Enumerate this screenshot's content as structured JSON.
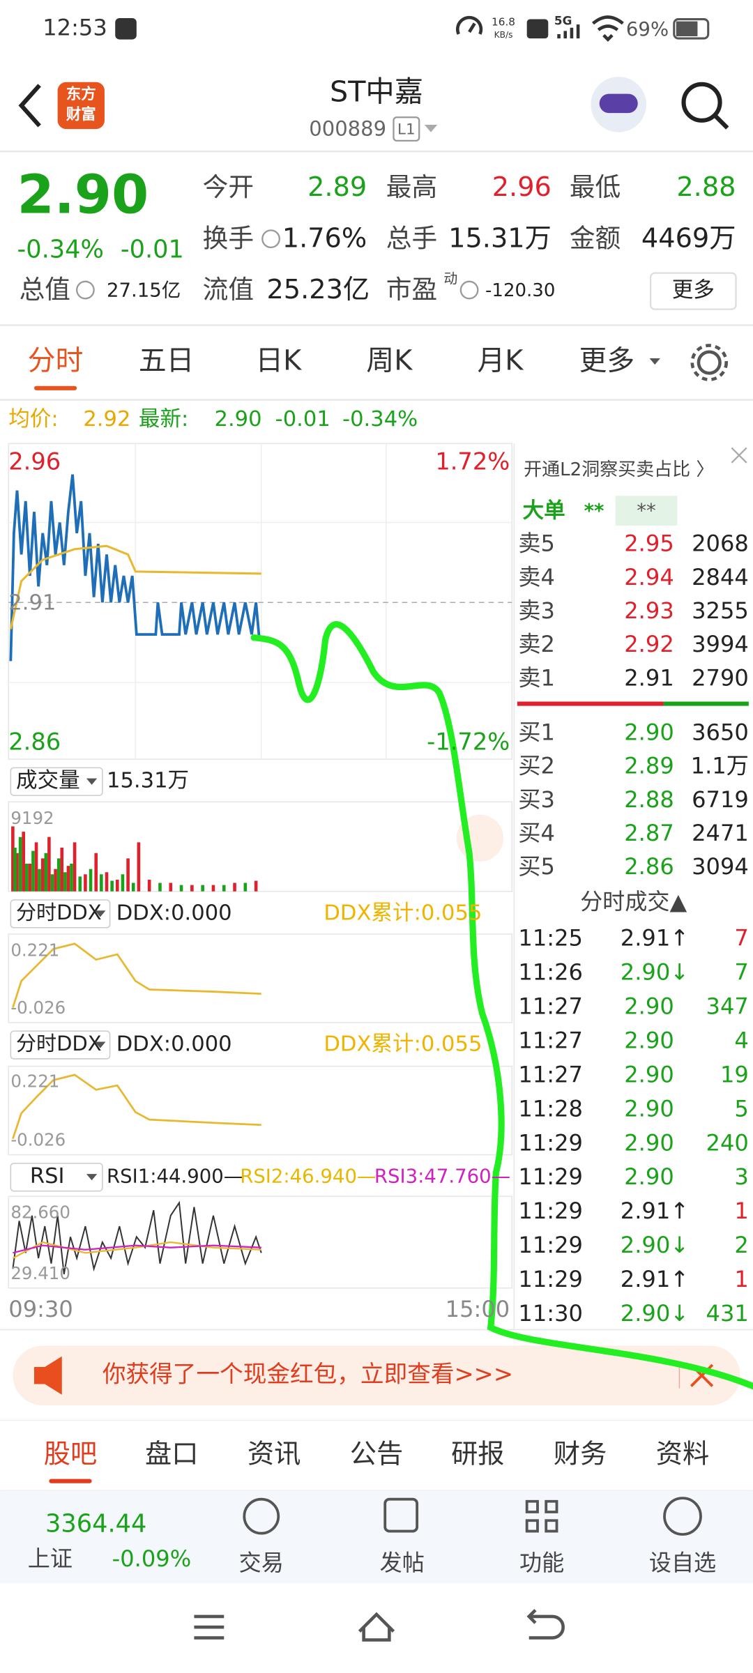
{
  "status_bar": {
    "time": "12:53",
    "speed": [
      "16.8",
      "KB/s"
    ],
    "network": "5G",
    "battery": "69%"
  },
  "header": {
    "logo": [
      "东方",
      "财富"
    ],
    "name": "ST中嘉",
    "code": "000889",
    "level": "L1"
  },
  "quote": {
    "price": "2.90",
    "change_pct": "-0.34%",
    "change": "-0.01",
    "color": "#1aa31a",
    "fields": [
      {
        "label": "今开",
        "value": "2.89",
        "color": "#1aa31a"
      },
      {
        "label": "最高",
        "value": "2.96",
        "color": "#e0202a"
      },
      {
        "label": "最低",
        "value": "2.88",
        "color": "#1aa31a"
      },
      {
        "label": "换手",
        "value": "1.76%",
        "color": "#222222"
      },
      {
        "label": "总手",
        "value": "15.31万",
        "color": "#222222"
      },
      {
        "label": "金额",
        "value": "4469万",
        "color": "#222222"
      },
      {
        "label": "总值",
        "value": "27.15亿",
        "color": "#222222"
      },
      {
        "label": "流值",
        "value": "25.23亿",
        "color": "#222222"
      },
      {
        "label": "市盈",
        "superscript": "动",
        "value": "-120.30",
        "color": "#222222"
      }
    ],
    "more": "更多"
  },
  "tabs": {
    "items": [
      "分时",
      "五日",
      "日K",
      "周K",
      "月K",
      "更多"
    ],
    "active": 0
  },
  "summary": {
    "avg_label": "均价:",
    "avg": "2.92",
    "latest_label": "最新:",
    "latest": "2.90",
    "change": "-0.01",
    "change_pct": "-0.34%"
  },
  "chart": {
    "price_high": "2.96",
    "price_mid": "2.91",
    "price_low": "2.86",
    "pct_high": "1.72%",
    "pct_low": "-1.72%",
    "volume": {
      "name": "成交量",
      "total": "15.31万",
      "max": "9192"
    },
    "ddx_panels": [
      {
        "name": "分时DDX",
        "ddx": "DDX:0.000",
        "cum": "DDX累计:0.055",
        "top": "0.221",
        "bottom": "-0.026"
      },
      {
        "name": "分时DDX",
        "ddx": "DDX:0.000",
        "cum": "DDX累计:0.055",
        "top": "0.221",
        "bottom": "-0.026"
      }
    ],
    "rsi": {
      "name": "RSI",
      "rsi1": "RSI1:44.900—",
      "rsi2": "RSI2:46.940—",
      "rsi3": "RSI3:47.760—",
      "top": "82.660",
      "bottom": "29.410"
    },
    "time_start": "09:30",
    "time_end": "15:00"
  },
  "order_book": {
    "banner": "开通L2洞察买卖占比 〉",
    "big_order": "大单",
    "stars": [
      "**",
      "**"
    ],
    "asks": [
      {
        "label": "卖5",
        "price": "2.95",
        "volume": "2068",
        "color": "#e0202a"
      },
      {
        "label": "卖4",
        "price": "2.94",
        "volume": "2844",
        "color": "#e0202a"
      },
      {
        "label": "卖3",
        "price": "2.93",
        "volume": "3255",
        "color": "#e0202a"
      },
      {
        "label": "卖2",
        "price": "2.92",
        "volume": "3994",
        "color": "#e0202a"
      },
      {
        "label": "卖1",
        "price": "2.91",
        "volume": "2790",
        "color": "#222222"
      }
    ],
    "bids": [
      {
        "label": "买1",
        "price": "2.90",
        "volume": "3650",
        "color": "#1aa31a"
      },
      {
        "label": "买2",
        "price": "2.89",
        "volume": "1.1万",
        "color": "#1aa31a"
      },
      {
        "label": "买3",
        "price": "2.88",
        "volume": "6719",
        "color": "#1aa31a"
      },
      {
        "label": "买4",
        "price": "2.87",
        "volume": "2471",
        "color": "#1aa31a"
      },
      {
        "label": "买5",
        "price": "2.86",
        "volume": "3094",
        "color": "#1aa31a"
      }
    ]
  },
  "trades": {
    "title": "分时成交▲",
    "rows": [
      {
        "time": "11:25",
        "price": "2.91↑",
        "volume": "7",
        "color": "#222222",
        "vcolor": "#e0202a"
      },
      {
        "time": "11:26",
        "price": "2.90↓",
        "volume": "7",
        "color": "#1aa31a",
        "vcolor": "#1aa31a"
      },
      {
        "time": "11:27",
        "price": "2.90",
        "volume": "347",
        "color": "#1aa31a",
        "vcolor": "#1aa31a"
      },
      {
        "time": "11:27",
        "price": "2.90",
        "volume": "4",
        "color": "#1aa31a",
        "vcolor": "#1aa31a"
      },
      {
        "time": "11:27",
        "price": "2.90",
        "volume": "19",
        "color": "#1aa31a",
        "vcolor": "#1aa31a"
      },
      {
        "time": "11:28",
        "price": "2.90",
        "volume": "5",
        "color": "#1aa31a",
        "vcolor": "#1aa31a"
      },
      {
        "time": "11:29",
        "price": "2.90",
        "volume": "240",
        "color": "#1aa31a",
        "vcolor": "#1aa31a"
      },
      {
        "time": "11:29",
        "price": "2.90",
        "volume": "3",
        "color": "#1aa31a",
        "vcolor": "#1aa31a"
      },
      {
        "time": "11:29",
        "price": "2.91↑",
        "volume": "1",
        "color": "#222222",
        "vcolor": "#e0202a"
      },
      {
        "time": "11:29",
        "price": "2.90↓",
        "volume": "2",
        "color": "#1aa31a",
        "vcolor": "#1aa31a"
      },
      {
        "time": "11:29",
        "price": "2.91↑",
        "volume": "1",
        "color": "#222222",
        "vcolor": "#e0202a"
      },
      {
        "time": "11:30",
        "price": "2.90↓",
        "volume": "431",
        "color": "#1aa31a",
        "vcolor": "#1aa31a"
      }
    ]
  },
  "promo": {
    "text": "你获得了一个现金红包，立即查看>>>"
  },
  "bottom_tabs": {
    "items": [
      "股吧",
      "盘口",
      "资讯",
      "公告",
      "研报",
      "财务",
      "资料"
    ],
    "active": 0
  },
  "nav": {
    "index_value": "3364.44",
    "index_name": "上证",
    "index_change": "-0.09%",
    "items": [
      "交易",
      "发帖",
      "功能",
      "设自选"
    ]
  }
}
